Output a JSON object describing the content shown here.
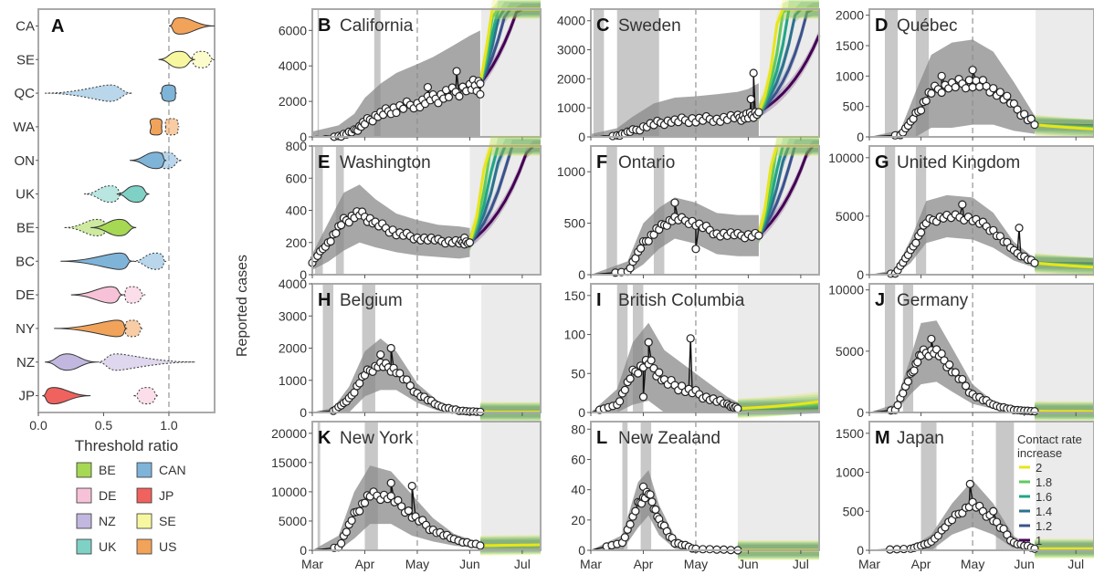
{
  "figure": {
    "ylabel": "Reported cases",
    "date_ticks": [
      "Mar",
      "Apr",
      "May",
      "Jun",
      "Jul"
    ]
  },
  "legend_contact": {
    "title": [
      "Contact rate",
      "increase"
    ],
    "items": [
      {
        "label": "2",
        "color": "#e8e51a"
      },
      {
        "label": "1.8",
        "color": "#5ec962"
      },
      {
        "label": "1.6",
        "color": "#21a685"
      },
      {
        "label": "1.4",
        "color": "#2c728e"
      },
      {
        "label": "1.2",
        "color": "#3b528b"
      },
      {
        "label": "1",
        "color": "#440154"
      }
    ]
  },
  "legend_regions": [
    {
      "label": "BE",
      "color": "#a6d854"
    },
    {
      "label": "CAN",
      "color": "#7fb4d9"
    },
    {
      "label": "DE",
      "color": "#f7c2d8"
    },
    {
      "label": "JP",
      "color": "#f0625e"
    },
    {
      "label": "NZ",
      "color": "#c2b7de"
    },
    {
      "label": "SE",
      "color": "#f7f7a0"
    },
    {
      "label": "UK",
      "color": "#7fd1c6"
    },
    {
      "label": "US",
      "color": "#f2a35a"
    }
  ],
  "chart_data": [
    {
      "panel": "A",
      "type": "violin",
      "xlabel": "Threshold ratio",
      "xlim": [
        0,
        1.35
      ],
      "xticks": [
        "0.0",
        "0.5",
        "1.0"
      ],
      "reference_line": 1.0,
      "categories": [
        "CA",
        "SE",
        "QC",
        "WA",
        "ON",
        "UK",
        "BE",
        "BC",
        "DE",
        "NY",
        "NZ",
        "JP"
      ],
      "solid": [
        {
          "cat": "CA",
          "center": 1.09,
          "min": 1.0,
          "max": 1.35,
          "color": "#f2a35a"
        },
        {
          "cat": "SE",
          "center": 1.08,
          "min": 0.92,
          "max": 1.2,
          "color": "#f7f7a0"
        },
        {
          "cat": "QC",
          "center": 1.0,
          "min": 0.93,
          "max": 1.06,
          "color": "#7fb4d9"
        },
        {
          "cat": "WA",
          "center": 0.9,
          "min": 0.86,
          "max": 0.95,
          "color": "#f2a35a"
        },
        {
          "cat": "ON",
          "center": 0.9,
          "min": 0.7,
          "max": 0.98,
          "color": "#7fb4d9"
        },
        {
          "cat": "UK",
          "center": 0.75,
          "min": 0.6,
          "max": 0.85,
          "color": "#7fd1c6"
        },
        {
          "cat": "BE",
          "center": 0.62,
          "min": 0.4,
          "max": 0.75,
          "color": "#a6d854"
        },
        {
          "cat": "BC",
          "center": 0.62,
          "min": 0.17,
          "max": 0.72,
          "color": "#7fb4d9"
        },
        {
          "cat": "DE",
          "center": 0.55,
          "min": 0.25,
          "max": 0.65,
          "color": "#f7c2d8"
        },
        {
          "cat": "NY",
          "center": 0.6,
          "min": 0.12,
          "max": 0.68,
          "color": "#f2a35a"
        },
        {
          "cat": "NZ",
          "center": 0.22,
          "min": 0.05,
          "max": 0.45,
          "color": "#c2b7de"
        },
        {
          "cat": "JP",
          "center": 0.12,
          "min": 0.03,
          "max": 0.4,
          "color": "#f0625e"
        }
      ],
      "dotted": [
        {
          "cat": "SE",
          "center": 1.25,
          "min": 1.15,
          "max": 1.35,
          "color": "#f7f7a0"
        },
        {
          "cat": "QC",
          "center": 0.55,
          "min": 0.05,
          "max": 0.72,
          "color": "#7fb4d9"
        },
        {
          "cat": "WA",
          "center": 1.02,
          "min": 0.97,
          "max": 1.08,
          "color": "#f2a35a"
        },
        {
          "cat": "ON",
          "center": 0.98,
          "min": 0.93,
          "max": 1.1,
          "color": "#7fb4d9"
        },
        {
          "cat": "UK",
          "center": 0.55,
          "min": 0.35,
          "max": 0.65,
          "color": "#7fd1c6"
        },
        {
          "cat": "BE",
          "center": 0.45,
          "min": 0.2,
          "max": 0.55,
          "color": "#a6d854"
        },
        {
          "cat": "BC",
          "center": 0.9,
          "min": 0.72,
          "max": 0.98,
          "color": "#7fb4d9"
        },
        {
          "cat": "DE",
          "center": 0.72,
          "min": 0.65,
          "max": 0.82,
          "color": "#f7c2d8"
        },
        {
          "cat": "NY",
          "center": 0.72,
          "min": 0.65,
          "max": 0.8,
          "color": "#f2a35a"
        },
        {
          "cat": "NZ",
          "center": 0.6,
          "min": 0.45,
          "max": 1.2,
          "color": "#c2b7de"
        },
        {
          "cat": "JP",
          "center": 0.83,
          "min": 0.73,
          "max": 0.92,
          "color": "#f7c2d8"
        }
      ]
    },
    {
      "panel": "B",
      "title": "California",
      "type": "line",
      "ymax": 7200,
      "yticks": [
        0,
        2000,
        4000,
        6000
      ],
      "shaded_proj_start": 3.22,
      "shaded_proj_end": 4.35,
      "lockdown": [
        [
          0.1,
          0.1
        ],
        [
          1.18,
          1.3
        ]
      ],
      "shifts": [
        0.56,
        0.8,
        1.05,
        1.3,
        1.6,
        2.0
      ],
      "x": [
        0,
        0.5,
        0.8,
        1.0,
        1.3,
        1.6,
        2.0,
        2.3,
        2.6,
        3.0,
        3.2
      ],
      "y": [
        0,
        50,
        300,
        800,
        1300,
        1600,
        1900,
        2100,
        2400,
        2800,
        3000
      ],
      "band": [
        300,
        600,
        1000,
        1400,
        1700,
        2000,
        2200,
        2400,
        2600,
        2900,
        3000
      ],
      "spikes": [
        [
          2.75,
          3700
        ],
        [
          3.2,
          2400
        ],
        [
          2.2,
          2800
        ]
      ]
    },
    {
      "panel": "C",
      "title": "Sweden",
      "type": "line",
      "ymax": 4400,
      "yticks": [
        0,
        1000,
        2000,
        3000,
        4000
      ],
      "shaded_proj_start": 3.22,
      "shaded_proj_end": 4.35,
      "lockdown": [
        [
          0.05,
          0.25
        ],
        [
          0.5,
          1.3
        ]
      ],
      "shifts": [
        0.56,
        0.8,
        1.05,
        1.3,
        1.6,
        2.0
      ],
      "x": [
        0,
        0.5,
        0.8,
        1.2,
        1.6,
        2.0,
        2.4,
        2.8,
        3.0,
        3.2
      ],
      "y": [
        0,
        50,
        200,
        450,
        550,
        600,
        620,
        650,
        700,
        850
      ],
      "band": [
        100,
        250,
        500,
        700,
        800,
        800,
        850,
        900,
        950,
        1000
      ],
      "spikes": [
        [
          3.1,
          2200
        ],
        [
          3.05,
          1300
        ]
      ]
    },
    {
      "panel": "D",
      "title": "Québec",
      "type": "line",
      "ymax": 2100,
      "yticks": [
        0,
        500,
        1000,
        1500,
        2000
      ],
      "shaded_proj_start": 3.22,
      "shaded_proj_end": 4.35,
      "lockdown": [
        [
          0.3,
          0.55
        ],
        [
          0.9,
          1.15
        ]
      ],
      "shifts": [
        -0.03,
        -0.06,
        -0.09,
        -0.12,
        -0.15,
        -0.18
      ],
      "x": [
        0,
        0.6,
        0.9,
        1.2,
        1.6,
        2.0,
        2.4,
        2.8,
        3.2
      ],
      "y": [
        0,
        30,
        350,
        750,
        850,
        900,
        800,
        500,
        200
      ],
      "band": [
        0,
        80,
        400,
        600,
        700,
        700,
        600,
        400,
        150
      ],
      "spikes": [
        [
          2.0,
          1100
        ],
        [
          1.4,
          1000
        ]
      ]
    },
    {
      "panel": "E",
      "title": "Washington",
      "type": "line",
      "ymax": 800,
      "yticks": [
        0,
        200,
        400,
        600,
        800
      ],
      "shaded_proj_start": 3.0,
      "shaded_proj_end": 4.35,
      "lockdown": [
        [
          0.05,
          0.2
        ],
        [
          0.45,
          0.6
        ]
      ],
      "shifts": [
        0.56,
        0.8,
        1.05,
        1.3,
        1.6,
        2.0
      ],
      "x": [
        0,
        0.3,
        0.6,
        0.9,
        1.2,
        1.6,
        2.0,
        2.4,
        2.8,
        3.0
      ],
      "y": [
        80,
        200,
        330,
        380,
        320,
        260,
        230,
        210,
        200,
        200
      ],
      "band": [
        50,
        120,
        180,
        180,
        150,
        120,
        110,
        100,
        100,
        90
      ],
      "spikes": [
        [
          2.9,
          230
        ]
      ]
    },
    {
      "panel": "F",
      "title": "Ontario",
      "type": "line",
      "ymax": 1250,
      "yticks": [
        0,
        500,
        1000
      ],
      "shaded_proj_start": 3.22,
      "shaded_proj_end": 4.35,
      "lockdown": [
        [
          0.3,
          0.5
        ],
        [
          1.2,
          1.4
        ]
      ],
      "shifts": [
        0.56,
        0.8,
        1.05,
        1.3,
        1.6,
        2.0
      ],
      "x": [
        0,
        0.7,
        1.0,
        1.3,
        1.6,
        2.0,
        2.4,
        2.8,
        3.2
      ],
      "y": [
        0,
        30,
        300,
        450,
        550,
        500,
        400,
        380,
        380
      ],
      "band": [
        0,
        100,
        200,
        200,
        200,
        200,
        200,
        200,
        200
      ],
      "spikes": [
        [
          1.6,
          700
        ],
        [
          2.0,
          250
        ]
      ]
    },
    {
      "panel": "G",
      "title": "United Kingdom",
      "type": "line",
      "ymax": 11000,
      "yticks": [
        0,
        5000,
        10000
      ],
      "shaded_proj_start": 3.22,
      "shaded_proj_end": 4.35,
      "lockdown": [
        [
          0.3,
          0.5
        ],
        [
          0.9,
          1.1
        ]
      ],
      "shifts": [
        -0.03,
        -0.06,
        -0.09,
        -0.12,
        -0.15,
        -0.18
      ],
      "x": [
        0,
        0.5,
        0.8,
        1.1,
        1.5,
        2.0,
        2.4,
        2.8,
        3.2
      ],
      "y": [
        0,
        100,
        2000,
        4500,
        5000,
        4800,
        3800,
        2000,
        1000
      ],
      "band": [
        0,
        300,
        1000,
        1800,
        1800,
        1800,
        1500,
        800,
        400
      ],
      "spikes": [
        [
          2.9,
          4000
        ],
        [
          1.8,
          6000
        ]
      ]
    },
    {
      "panel": "H",
      "title": "Belgium",
      "type": "line",
      "ymax": 4000,
      "yticks": [
        0,
        1000,
        2000,
        3000,
        4000
      ],
      "shaded_proj_start": 3.22,
      "shaded_proj_end": 4.35,
      "lockdown": [
        [
          0.2,
          0.4
        ],
        [
          0.95,
          1.2
        ]
      ],
      "shifts": [
        -0.01,
        -0.02,
        -0.03,
        -0.04,
        -0.05,
        -0.06
      ],
      "x": [
        0,
        0.4,
        0.7,
        1.0,
        1.3,
        1.6,
        2.0,
        2.4,
        2.8,
        3.2
      ],
      "y": [
        0,
        50,
        400,
        1200,
        1500,
        1300,
        600,
        200,
        50,
        20
      ],
      "band": [
        0,
        100,
        400,
        700,
        800,
        600,
        300,
        150,
        50,
        20
      ],
      "spikes": [
        [
          1.5,
          2000
        ],
        [
          1.3,
          1800
        ]
      ]
    },
    {
      "panel": "I",
      "title": "British Columbia",
      "type": "line",
      "ymax": 165,
      "yticks": [
        0,
        50,
        100,
        150
      ],
      "shaded_proj_start": 2.8,
      "shaded_proj_end": 4.35,
      "lockdown": [
        [
          0.5,
          0.7
        ],
        [
          0.8,
          1.0
        ]
      ],
      "shifts": [
        0.05,
        0.1,
        0.15,
        0.2,
        0.25,
        0.3
      ],
      "x": [
        0,
        0.5,
        0.8,
        1.1,
        1.4,
        1.8,
        2.2,
        2.6,
        2.8
      ],
      "y": [
        0,
        10,
        50,
        65,
        40,
        30,
        20,
        10,
        5
      ],
      "band": [
        0,
        20,
        40,
        50,
        40,
        30,
        20,
        10,
        8
      ],
      "spikes": [
        [
          1.9,
          95
        ],
        [
          1.1,
          90
        ],
        [
          1.0,
          20
        ]
      ]
    },
    {
      "panel": "J",
      "title": "Germany",
      "type": "line",
      "ymax": 10500,
      "yticks": [
        0,
        5000,
        10000
      ],
      "shaded_proj_start": 3.22,
      "shaded_proj_end": 4.35,
      "lockdown": [
        [
          0.3,
          0.5
        ],
        [
          0.65,
          0.85
        ]
      ],
      "shifts": [
        -0.01,
        -0.02,
        -0.03,
        -0.04,
        -0.05,
        -0.06
      ],
      "x": [
        0,
        0.5,
        0.8,
        1.0,
        1.3,
        1.6,
        2.0,
        2.4,
        2.8,
        3.2
      ],
      "y": [
        0,
        200,
        3000,
        4800,
        5000,
        3500,
        1500,
        600,
        200,
        100
      ],
      "band": [
        0,
        500,
        1500,
        2500,
        2500,
        1800,
        800,
        300,
        100,
        50
      ],
      "spikes": [
        [
          1.2,
          6000
        ]
      ]
    },
    {
      "panel": "K",
      "title": "New York",
      "type": "line",
      "ymax": 22000,
      "yticks": [
        0,
        5000,
        10000,
        15000,
        20000
      ],
      "shaded_proj_start": 3.22,
      "shaded_proj_end": 4.35,
      "lockdown": [
        [
          0.1,
          0.15
        ],
        [
          1.0,
          1.25
        ]
      ],
      "shifts": [
        0.01,
        0.02,
        0.03,
        0.04,
        0.05,
        0.06
      ],
      "x": [
        0,
        0.5,
        0.8,
        1.1,
        1.5,
        1.9,
        2.3,
        2.7,
        3.2
      ],
      "y": [
        0,
        500,
        6000,
        9500,
        9000,
        6000,
        3500,
        1800,
        800
      ],
      "band": [
        0,
        2000,
        4000,
        5000,
        4500,
        3500,
        2000,
        1000,
        500
      ],
      "spikes": [
        [
          1.9,
          11000
        ],
        [
          1.5,
          11500
        ]
      ]
    },
    {
      "panel": "L",
      "title": "New Zealand",
      "type": "line",
      "ymax": 85,
      "yticks": [
        0,
        20,
        40,
        60,
        80
      ],
      "shaded_proj_start": 2.8,
      "shaded_proj_end": 4.35,
      "lockdown": [
        [
          0.6,
          0.7
        ],
        [
          0.95,
          1.15
        ]
      ],
      "shifts": [
        0,
        0,
        0,
        0,
        0,
        0
      ],
      "x": [
        0,
        0.6,
        0.9,
        1.1,
        1.3,
        1.6,
        2.0,
        2.8
      ],
      "y": [
        0,
        5,
        30,
        38,
        20,
        5,
        1,
        0
      ],
      "band": [
        0,
        5,
        15,
        15,
        10,
        4,
        1,
        0
      ],
      "spikes": [
        [
          1.0,
          42
        ]
      ]
    },
    {
      "panel": "M",
      "title": "Japan",
      "type": "line",
      "ymax": 1650,
      "yticks": [
        0,
        500,
        1000,
        1500
      ],
      "shaded_proj_start": 3.22,
      "shaded_proj_end": 4.35,
      "lockdown": [
        [
          1.0,
          1.3
        ],
        [
          2.45,
          2.8
        ]
      ],
      "shifts": [
        0.002,
        0.004,
        0.006,
        0.008,
        0.01,
        0.012
      ],
      "x": [
        0,
        0.8,
        1.2,
        1.6,
        2.0,
        2.4,
        2.8,
        3.2
      ],
      "y": [
        0,
        20,
        100,
        400,
        600,
        400,
        100,
        20
      ],
      "band": [
        0,
        20,
        100,
        200,
        300,
        200,
        80,
        20
      ],
      "spikes": [
        [
          1.95,
          850
        ],
        [
          2.4,
          500
        ]
      ]
    }
  ]
}
